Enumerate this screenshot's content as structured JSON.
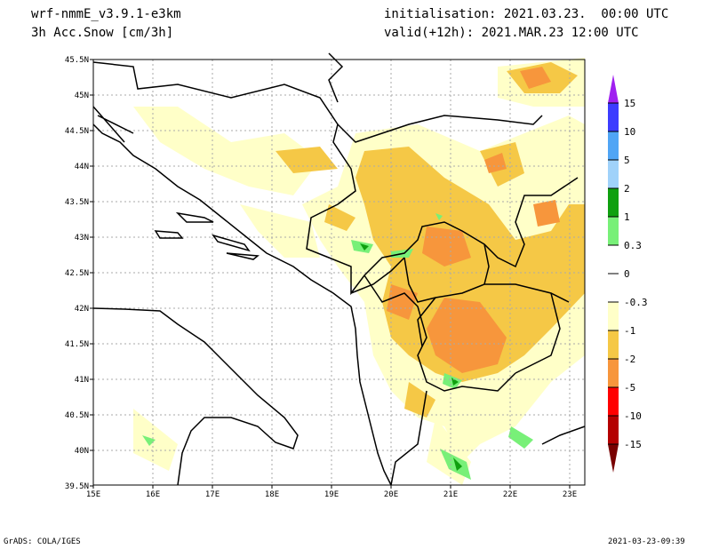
{
  "header": {
    "model": "wrf-nmmE_v3.9.1-e3km",
    "field": "3h Acc.Snow [cm/3h]",
    "init": "initialisation: 2021.03.23.  00:00 UTC",
    "valid": "valid(+12h): 2021.MAR.23 12:00 UTC"
  },
  "axes": {
    "lon_labels": [
      "15E",
      "16E",
      "17E",
      "18E",
      "19E",
      "20E",
      "21E",
      "22E",
      "23E"
    ],
    "lat_labels": [
      "45.5N",
      "45N",
      "44.5N",
      "44N",
      "43.5N",
      "43N",
      "42.5N",
      "42N",
      "41.5N",
      "41N",
      "40.5N",
      "40N",
      "39.5N"
    ]
  },
  "colorbar": {
    "labels": [
      "15",
      "10",
      "5",
      "2",
      "1",
      "0.3",
      "0",
      "-0.3",
      "-1",
      "-2",
      "-5",
      "-10",
      "-15"
    ],
    "colors": [
      "#a020f0",
      "#3c3cff",
      "#50a5f5",
      "#a0d2fa",
      "#0fa00f",
      "#78f078",
      "#ffffff",
      "#ffffff",
      "#ffffc8",
      "#f5c846",
      "#f7963c",
      "#ff0000",
      "#b40000",
      "#780000"
    ]
  },
  "snow_colors": {
    "light": "#ffffc8",
    "mid": "#f5c846",
    "heavy": "#f7963c",
    "green": "#78f078",
    "dgreen": "#0fa00f"
  },
  "footer": {
    "left": "GrADS: COLA/IGES",
    "right": "2021-03-23-09:39"
  }
}
